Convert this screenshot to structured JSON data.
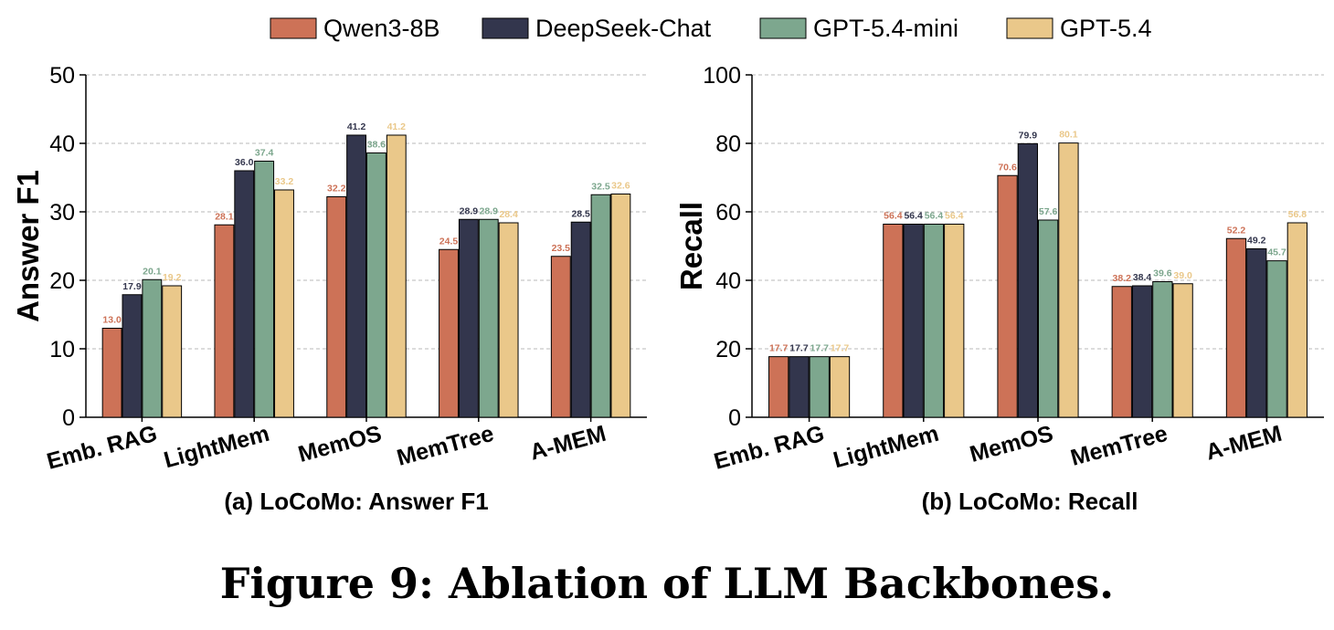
{
  "legend": [
    {
      "label": "Qwen3-8B",
      "color": "#cd7257"
    },
    {
      "label": "DeepSeek-Chat",
      "color": "#33364d"
    },
    {
      "label": "GPT-5.4-mini",
      "color": "#7da78e"
    },
    {
      "label": "GPT-5.4",
      "color": "#eac88a"
    }
  ],
  "chart_data": [
    {
      "type": "bar",
      "title": "(a) LoCoMo: Answer F1",
      "xlabel": "",
      "ylabel": "Answer F1",
      "ylim": [
        0,
        50
      ],
      "yticks": [
        0,
        10,
        20,
        30,
        40,
        50
      ],
      "grid": true,
      "legend_position": "top",
      "categories": [
        "Emb. RAG",
        "LightMem",
        "MemOS",
        "MemTree",
        "A-MEM"
      ],
      "series": [
        {
          "name": "Qwen3-8B",
          "color": "#cd7257",
          "values": [
            13.0,
            28.1,
            32.2,
            24.5,
            23.5
          ],
          "labels": [
            "13.0",
            "28.1",
            "32.2",
            "24.5",
            "23.5"
          ]
        },
        {
          "name": "DeepSeek-Chat",
          "color": "#33364d",
          "values": [
            17.9,
            36.0,
            41.2,
            28.9,
            28.5
          ],
          "labels": [
            "17.9",
            "36.0",
            "41.2",
            "28.9",
            "28.5"
          ]
        },
        {
          "name": "GPT-5.4-mini",
          "color": "#7da78e",
          "values": [
            20.1,
            37.4,
            38.6,
            28.9,
            32.5
          ],
          "labels": [
            "20.1",
            "37.4",
            "38.6",
            "28.9",
            "32.5"
          ]
        },
        {
          "name": "GPT-5.4",
          "color": "#eac88a",
          "values": [
            19.2,
            33.2,
            41.2,
            28.4,
            32.6
          ],
          "labels": [
            "19.2",
            "33.2",
            "41.2",
            "28.4",
            "32.6"
          ]
        }
      ]
    },
    {
      "type": "bar",
      "title": "(b) LoCoMo: Recall",
      "xlabel": "",
      "ylabel": "Recall",
      "ylim": [
        0,
        100
      ],
      "yticks": [
        0,
        20,
        40,
        60,
        80,
        100
      ],
      "grid": true,
      "legend_position": "top",
      "categories": [
        "Emb. RAG",
        "LightMem",
        "MemOS",
        "MemTree",
        "A-MEM"
      ],
      "series": [
        {
          "name": "Qwen3-8B",
          "color": "#cd7257",
          "values": [
            17.7,
            56.4,
            70.6,
            38.2,
            52.2
          ],
          "labels": [
            "17.7",
            "56.4",
            "70.6",
            "38.2",
            "52.2"
          ]
        },
        {
          "name": "DeepSeek-Chat",
          "color": "#33364d",
          "values": [
            17.7,
            56.4,
            79.9,
            38.4,
            49.2
          ],
          "labels": [
            "17.7",
            "56.4",
            "79.9",
            "38.4",
            "49.2"
          ]
        },
        {
          "name": "GPT-5.4-mini",
          "color": "#7da78e",
          "values": [
            17.7,
            56.4,
            57.6,
            39.6,
            45.7
          ],
          "labels": [
            "17.7",
            "56.4",
            "57.6",
            "39.6",
            "45.7"
          ]
        },
        {
          "name": "GPT-5.4",
          "color": "#eac88a",
          "values": [
            17.7,
            56.4,
            80.1,
            39.0,
            56.8
          ],
          "labels": [
            "17.7",
            "56.4",
            "80.1",
            "39.0",
            "56.8"
          ]
        }
      ]
    }
  ],
  "figure_caption": "Figure 9: Ablation of LLM Backbones."
}
